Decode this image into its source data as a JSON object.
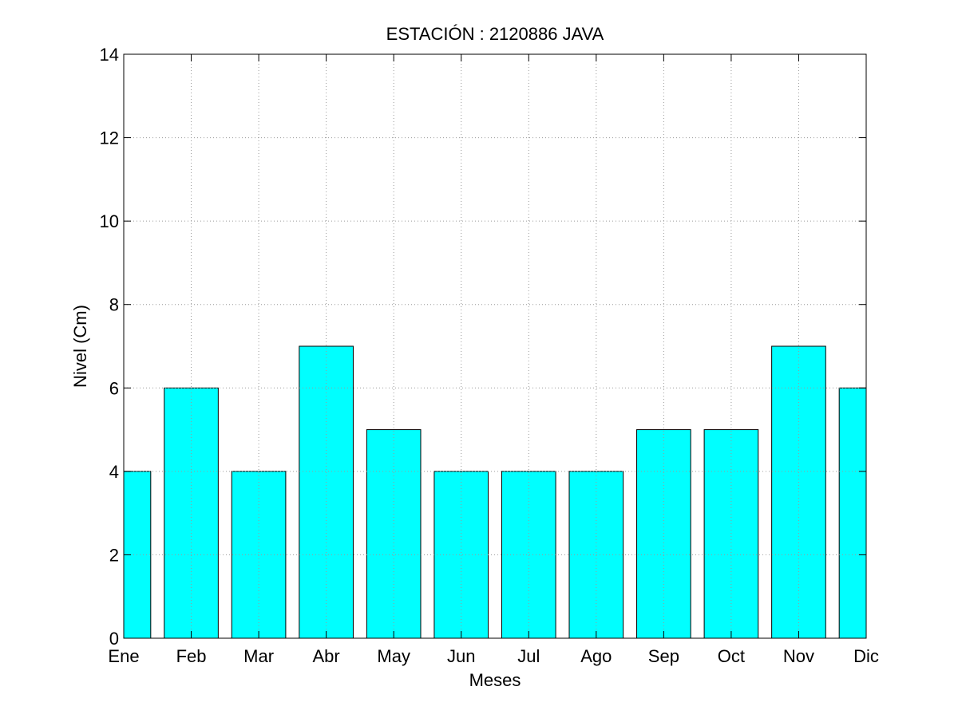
{
  "chart_data": {
    "type": "bar",
    "title": "ESTACIÓN :  2120886  JAVA",
    "xlabel": "Meses",
    "ylabel": "Nivel (Cm)",
    "categories": [
      "Ene",
      "Feb",
      "Mar",
      "Abr",
      "May",
      "Jun",
      "Jul",
      "Ago",
      "Sep",
      "Oct",
      "Nov",
      "Dic"
    ],
    "values": [
      4,
      6,
      4,
      7,
      5,
      4,
      4,
      4,
      5,
      5,
      7,
      6
    ],
    "ylim": [
      0,
      14
    ],
    "xlim": [
      1,
      12
    ],
    "yticks": [
      0,
      2,
      4,
      6,
      8,
      10,
      12,
      14
    ],
    "grid": true,
    "colors": {
      "bar_fill": "#00ffff",
      "bar_edge": "#000000",
      "grid": "#9a9a9a",
      "axes": "#000000"
    }
  }
}
